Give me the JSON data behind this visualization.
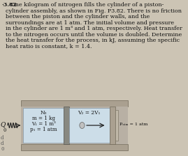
{
  "bg_color": "#ccc4b4",
  "text_color": "#111111",
  "title_line1": "3.82  One kilogram of nitrogen fills the cylinder of a piston-",
  "title_line2": "  cylinder assembly, as shown in Fig. P3.82. There is no friction",
  "title_line3": "  between the piston and the cylinder walls, and the",
  "title_line4": "  surroundings are at 1 atm. The initial volume and pressure",
  "title_line5": "  in the cylinder are 1 m³ and 1 atm, respectively. Heat transfer",
  "title_line6": "  to the nitrogen occurs until the volume is doubled. Determine",
  "title_line7": "  the heat transfer for the process, in kJ, assuming the specific",
  "title_line8": "  heat ratio is constant, k = 1.4.",
  "label_N2": "N₂",
  "label_m": "m = 1 kg",
  "label_V1": "V₁ = 1 m³",
  "label_p1": "p₁ = 1 atm",
  "label_V2": "V₂ = 2V₁",
  "label_Patm": "Pₐₜₘ = 1 atm",
  "label_Q": "Q",
  "cylinder_shell_color": "#aaa090",
  "cylinder_inner_bg": "#b8b0a4",
  "chamber_color": "#ccdde8",
  "piston_color": "#909090",
  "font_size_body": 5.8,
  "font_size_diagram": 5.4
}
